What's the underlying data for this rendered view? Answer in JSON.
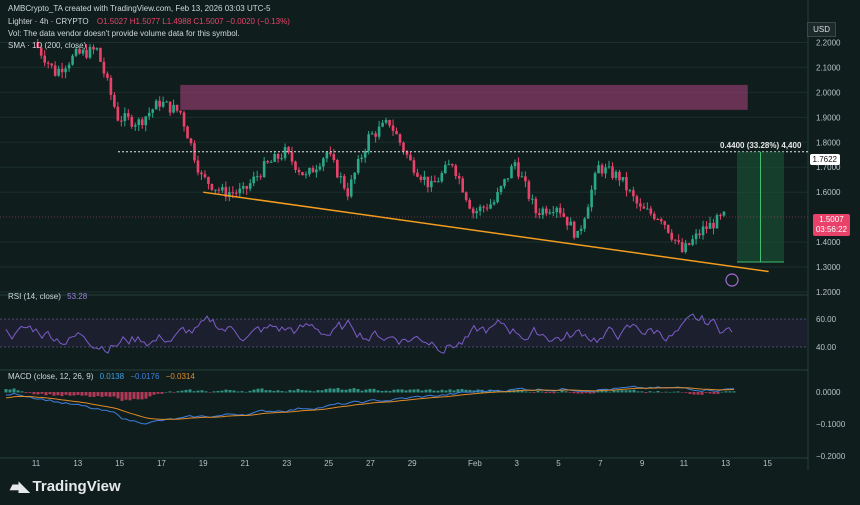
{
  "header": {
    "author_line": "AMBCrypto_TA created with TradingView.com, Feb 13, 2026 03:03 UTC-5",
    "symbol": "Lighter · 4h · CRYPTO",
    "ohlc": "O1.5027  H1.5077  L1.4988  C1.5007  −0.0020 (−0.13%)",
    "vol_note": "Vol: The data vendor doesn't provide volume data for this symbol.",
    "sma_label": "SMA · 1D (200, close)",
    "currency": "USD"
  },
  "price_axis": {
    "ticks": [
      "2.2000",
      "2.1000",
      "2.0000",
      "1.9000",
      "1.8000",
      "1.7000",
      "1.6000",
      "1.4000",
      "1.3000",
      "1.2000"
    ],
    "current_price": "1.5007",
    "countdown": "03:56:22",
    "target_price": "1.7622"
  },
  "measure": {
    "label": "0.4400 (33.28%) 4,400"
  },
  "rsi": {
    "label": "RSI (14, close)",
    "value": "53.28",
    "ticks": [
      "60.00",
      "40.00"
    ]
  },
  "macd": {
    "label": "MACD (close, 12, 26, 9)",
    "v1": "0.0138",
    "v2": "−0.0176",
    "v3": "−0.0314",
    "ticks": [
      "0.0000",
      "−0.1000",
      "−0.2000"
    ]
  },
  "time_axis": [
    "11",
    "13",
    "15",
    "17",
    "19",
    "21",
    "23",
    "25",
    "27",
    "29",
    "Feb",
    "3",
    "5",
    "7",
    "9",
    "11",
    "13",
    "15"
  ],
  "brand": "TradingView",
  "colors": {
    "up": "#2aa889",
    "down": "#e8426b",
    "trendline": "#f39c1f",
    "zone": "#8e3a6e",
    "rsi": "#7b5cc8",
    "macd": "#3f7fe0",
    "signal": "#e08a2a"
  },
  "chart_data": {
    "type": "candlestick",
    "timeframe": "4h",
    "x_range": [
      "Jan 11",
      "Feb 15"
    ],
    "ylim": [
      1.2,
      2.25
    ],
    "close_path": [
      {
        "x": "Jan 11",
        "y": 2.2
      },
      {
        "x": "Jan 12",
        "y": 2.08
      },
      {
        "x": "Jan 13",
        "y": 2.15
      },
      {
        "x": "Jan 14",
        "y": 2.17
      },
      {
        "x": "Jan 15",
        "y": 1.9
      },
      {
        "x": "Jan 16",
        "y": 1.88
      },
      {
        "x": "Jan 17",
        "y": 1.96
      },
      {
        "x": "Jan 18",
        "y": 1.92
      },
      {
        "x": "Jan 19",
        "y": 1.66
      },
      {
        "x": "Jan 20",
        "y": 1.6
      },
      {
        "x": "Jan 21",
        "y": 1.6
      },
      {
        "x": "Jan 22",
        "y": 1.7
      },
      {
        "x": "Jan 23",
        "y": 1.76
      },
      {
        "x": "Jan 24",
        "y": 1.66
      },
      {
        "x": "Jan 25",
        "y": 1.76
      },
      {
        "x": "Jan 26",
        "y": 1.6
      },
      {
        "x": "Jan 27",
        "y": 1.82
      },
      {
        "x": "Jan 28",
        "y": 1.88
      },
      {
        "x": "Jan 29",
        "y": 1.72
      },
      {
        "x": "Jan 30",
        "y": 1.62
      },
      {
        "x": "Jan 31",
        "y": 1.72
      },
      {
        "x": "Feb 1",
        "y": 1.52
      },
      {
        "x": "Feb 2",
        "y": 1.56
      },
      {
        "x": "Feb 3",
        "y": 1.72
      },
      {
        "x": "Feb 4",
        "y": 1.52
      },
      {
        "x": "Feb 5",
        "y": 1.55
      },
      {
        "x": "Feb 6",
        "y": 1.42
      },
      {
        "x": "Feb 7",
        "y": 1.7
      },
      {
        "x": "Feb 8",
        "y": 1.66
      },
      {
        "x": "Feb 9",
        "y": 1.53
      },
      {
        "x": "Feb 10",
        "y": 1.5
      },
      {
        "x": "Feb 11",
        "y": 1.36
      },
      {
        "x": "Feb 12",
        "y": 1.45
      },
      {
        "x": "Feb 13",
        "y": 1.5007
      }
    ],
    "supply_zone": [
      1.93,
      2.03
    ],
    "trendline": [
      {
        "x": "Jan 19",
        "y": 1.6
      },
      {
        "x": "Feb 14",
        "y": 1.28
      }
    ],
    "target_line": 1.7622,
    "measure": {
      "from": 1.32,
      "to": 1.7622
    },
    "rsi_range": [
      25,
      75
    ],
    "macd_range": [
      -0.2,
      0.05
    ]
  }
}
